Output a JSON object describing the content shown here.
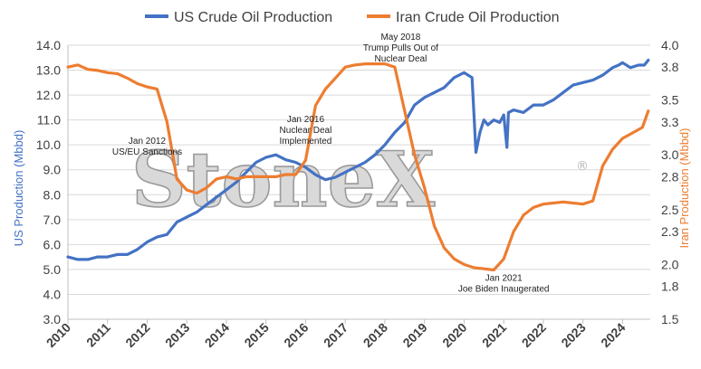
{
  "watermark": {
    "text": "StoneX",
    "registered": "®"
  },
  "chart_data": {
    "type": "line",
    "title": "",
    "xlabel": "",
    "ylabel": "US Production (Mbbd)",
    "ylabel_right": "Iran Production (Mbbd)",
    "ylim": [
      3.0,
      14.0
    ],
    "ylim_right": [
      1.5,
      4.0
    ],
    "yticks": [
      "3.0",
      "4.0",
      "5.0",
      "6.0",
      "7.0",
      "8.0",
      "9.0",
      "10.0",
      "11.0",
      "12.0",
      "13.0",
      "14.0"
    ],
    "yticks_right": [
      "1.5",
      "1.8",
      "2.0",
      "2.3",
      "2.5",
      "2.8",
      "3.0",
      "3.3",
      "3.5",
      "3.8",
      "4.0"
    ],
    "xlim": [
      2010.0,
      2024.7
    ],
    "xticks": [
      "2010",
      "2011",
      "2012",
      "2013",
      "2014",
      "2015",
      "2016",
      "2017",
      "2018",
      "2019",
      "2020",
      "2021",
      "2022",
      "2023",
      "2024"
    ],
    "grid": true,
    "legend_position": "top",
    "series": [
      {
        "name": "US Crude Oil Production",
        "axis": "left",
        "color": "#4472C4",
        "x": [
          2010.0,
          2010.25,
          2010.5,
          2010.75,
          2011.0,
          2011.25,
          2011.5,
          2011.75,
          2012.0,
          2012.25,
          2012.5,
          2012.75,
          2013.0,
          2013.25,
          2013.5,
          2013.75,
          2014.0,
          2014.25,
          2014.5,
          2014.75,
          2015.0,
          2015.25,
          2015.5,
          2015.75,
          2016.0,
          2016.25,
          2016.5,
          2016.75,
          2017.0,
          2017.25,
          2017.5,
          2017.75,
          2018.0,
          2018.25,
          2018.5,
          2018.75,
          2019.0,
          2019.25,
          2019.5,
          2019.75,
          2020.0,
          2020.2,
          2020.3,
          2020.4,
          2020.5,
          2020.6,
          2020.75,
          2020.9,
          2021.0,
          2021.08,
          2021.12,
          2021.25,
          2021.5,
          2021.75,
          2022.0,
          2022.25,
          2022.5,
          2022.75,
          2023.0,
          2023.25,
          2023.5,
          2023.75,
          2023.9,
          2024.0,
          2024.2,
          2024.4,
          2024.55,
          2024.65
        ],
        "values": [
          5.5,
          5.4,
          5.4,
          5.5,
          5.5,
          5.6,
          5.6,
          5.8,
          6.1,
          6.3,
          6.4,
          6.9,
          7.1,
          7.3,
          7.6,
          7.9,
          8.2,
          8.5,
          8.9,
          9.3,
          9.5,
          9.6,
          9.4,
          9.3,
          9.1,
          8.8,
          8.6,
          8.7,
          8.9,
          9.1,
          9.3,
          9.6,
          10.0,
          10.5,
          10.9,
          11.6,
          11.9,
          12.1,
          12.3,
          12.7,
          12.9,
          12.7,
          9.7,
          10.5,
          11.0,
          10.8,
          11.0,
          10.9,
          11.2,
          9.9,
          11.3,
          11.4,
          11.3,
          11.6,
          11.6,
          11.8,
          12.1,
          12.4,
          12.5,
          12.6,
          12.8,
          13.1,
          13.2,
          13.3,
          13.1,
          13.2,
          13.2,
          13.4
        ]
      },
      {
        "name": "Iran Crude Oil Production",
        "axis": "right",
        "color": "#ED7D31",
        "x": [
          2010.0,
          2010.25,
          2010.5,
          2010.75,
          2011.0,
          2011.25,
          2011.5,
          2011.75,
          2012.0,
          2012.25,
          2012.5,
          2012.75,
          2013.0,
          2013.25,
          2013.5,
          2013.75,
          2014.0,
          2014.25,
          2014.5,
          2014.75,
          2015.0,
          2015.25,
          2015.5,
          2015.75,
          2016.0,
          2016.25,
          2016.5,
          2016.75,
          2017.0,
          2017.25,
          2017.5,
          2017.75,
          2018.0,
          2018.25,
          2018.5,
          2018.75,
          2019.0,
          2019.25,
          2019.5,
          2019.75,
          2020.0,
          2020.25,
          2020.5,
          2020.75,
          2021.0,
          2021.25,
          2021.5,
          2021.75,
          2022.0,
          2022.25,
          2022.5,
          2022.75,
          2023.0,
          2023.25,
          2023.5,
          2023.75,
          2024.0,
          2024.25,
          2024.5,
          2024.65
        ],
        "values": [
          3.8,
          3.82,
          3.78,
          3.77,
          3.75,
          3.74,
          3.7,
          3.65,
          3.62,
          3.6,
          3.3,
          2.78,
          2.68,
          2.65,
          2.7,
          2.78,
          2.8,
          2.78,
          2.8,
          2.8,
          2.8,
          2.8,
          2.82,
          2.82,
          2.95,
          3.45,
          3.6,
          3.7,
          3.8,
          3.82,
          3.83,
          3.83,
          3.83,
          3.8,
          3.4,
          3.0,
          2.7,
          2.35,
          2.15,
          2.05,
          2.0,
          1.97,
          1.96,
          1.95,
          2.05,
          2.3,
          2.45,
          2.52,
          2.55,
          2.56,
          2.57,
          2.56,
          2.55,
          2.58,
          2.9,
          3.05,
          3.15,
          3.2,
          3.25,
          3.4
        ]
      }
    ],
    "annotations": [
      {
        "x": 2012.0,
        "y": 3.1,
        "axis": "right",
        "lines": [
          "Jan 2012",
          "US/EU Sanctions"
        ]
      },
      {
        "x": 2016.0,
        "y": 3.3,
        "axis": "right",
        "lines": [
          "Jan 2016",
          "Nuclear Deal",
          "Implemented"
        ]
      },
      {
        "x": 2018.4,
        "y": 4.05,
        "axis": "right",
        "lines": [
          "May 2018",
          "Trump Pulls Out of",
          "Nuclear Deal"
        ]
      },
      {
        "x": 2021.0,
        "y": 1.85,
        "axis": "right",
        "lines": [
          "Jan 2021",
          "Joe Biden Inaugerated"
        ]
      }
    ]
  }
}
